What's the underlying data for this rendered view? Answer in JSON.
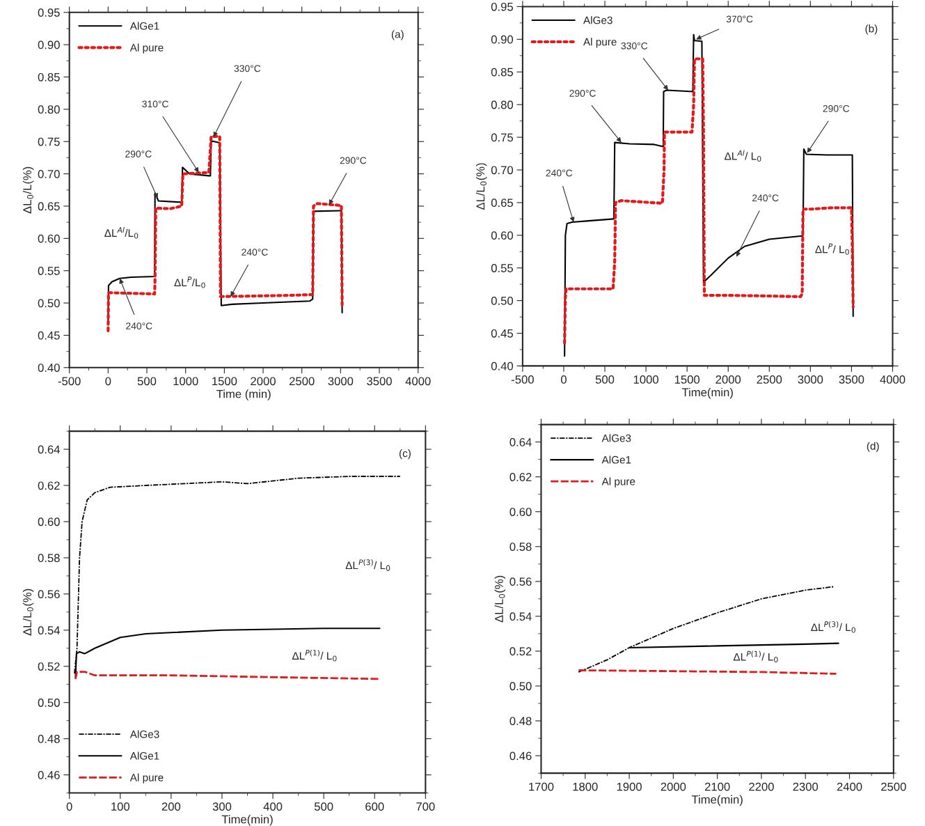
{
  "chart_data": [
    {
      "type": "line",
      "xlabel": "Time (min)",
      "ylabel": "ΔL$_{0}$/L(%)",
      "xlim": [
        -500,
        4000
      ],
      "xticks": [
        -500,
        0,
        500,
        1000,
        1500,
        2000,
        2500,
        3000,
        3500,
        4000
      ],
      "ylim": [
        0.4,
        0.95
      ],
      "yticks": [
        {
          "value": 0.4,
          "label": "0.40"
        },
        {
          "value": 0.45,
          "label": "0.45"
        },
        {
          "value": 0.5,
          "label": "0.50"
        },
        {
          "value": 0.55,
          "label": "0.55"
        },
        {
          "value": 0.6,
          "label": "0.60"
        },
        {
          "value": 0.65,
          "label": "0.65"
        },
        {
          "value": 0.7,
          "label": "0.70"
        },
        {
          "value": 0.75,
          "label": "0.75"
        },
        {
          "value": 0.8,
          "label": "0.80"
        },
        {
          "value": 0.85,
          "label": "0.85"
        },
        {
          "value": 0.9,
          "label": "0.90"
        },
        {
          "value": 0.95,
          "label": "0.95"
        }
      ],
      "legend": "top left",
      "grid": false,
      "series": [
        {
          "name": "AlGe1",
          "color": "#000000",
          "line_style": "solid",
          "x": [
            0,
            5,
            50,
            150,
            300,
            600,
            605,
            650,
            950,
            960,
            1050,
            1300,
            1320,
            1330,
            1440,
            1460,
            1600,
            2000,
            2600,
            2640,
            2650,
            3000,
            3010,
            3020
          ],
          "values": [
            0.47,
            0.527,
            0.533,
            0.538,
            0.54,
            0.541,
            0.67,
            0.658,
            0.656,
            0.71,
            0.7,
            0.697,
            0.697,
            0.751,
            0.748,
            0.496,
            0.498,
            0.5,
            0.503,
            0.506,
            0.642,
            0.643,
            0.643,
            0.485
          ]
        },
        {
          "name": "Al pure",
          "color": "#e3191c",
          "line_style": "dotted",
          "x": [
            0,
            5,
            300,
            600,
            605,
            615,
            800,
            950,
            965,
            1300,
            1330,
            1440,
            1450,
            2000,
            2400,
            2640,
            2650,
            2700,
            3010,
            3020
          ],
          "values": [
            0.457,
            0.516,
            0.515,
            0.514,
            0.535,
            0.647,
            0.646,
            0.65,
            0.7,
            0.702,
            0.758,
            0.758,
            0.51,
            0.511,
            0.512,
            0.513,
            0.65,
            0.654,
            0.651,
            0.497
          ]
        }
      ],
      "annotations": [
        "(a)",
        {
          "text": "290°C",
          "x": 640,
          "y": 0.662
        },
        {
          "text": "310°C",
          "x": 1170,
          "y": 0.702
        },
        {
          "text": "330°C",
          "x": 1360,
          "y": 0.757
        },
        {
          "text": "290°C",
          "x": 2850,
          "y": 0.652
        },
        {
          "text": "240°C",
          "x": 1580,
          "y": 0.51
        },
        {
          "text": "240°C",
          "x": 150,
          "y": 0.538
        },
        "ΔL$^{Al}$/L$_{0}$",
        "ΔL$^{P}$/L$_{0}$"
      ]
    },
    {
      "type": "line",
      "xlabel": "Time(min)",
      "ylabel": "ΔL/L$_{0}$(%)",
      "xlim": [
        -500,
        4000
      ],
      "xticks": [
        -500,
        0,
        500,
        1000,
        1500,
        2000,
        2500,
        3000,
        3500,
        4000
      ],
      "ylim": [
        0.4,
        0.95
      ],
      "yticks": [
        {
          "value": 0.4,
          "label": "0.40"
        },
        {
          "value": 0.45,
          "label": "0.45"
        },
        {
          "value": 0.5,
          "label": "0.50"
        },
        {
          "value": 0.55,
          "label": "0.55"
        },
        {
          "value": 0.6,
          "label": "0.60"
        },
        {
          "value": 0.65,
          "label": "0.65"
        },
        {
          "value": 0.7,
          "label": "0.70"
        },
        {
          "value": 0.75,
          "label": "0.75"
        },
        {
          "value": 0.8,
          "label": "0.80"
        },
        {
          "value": 0.85,
          "label": "0.85"
        },
        {
          "value": 0.9,
          "label": "0.90"
        },
        {
          "value": 0.95,
          "label": "0.95"
        }
      ],
      "legend": "top left",
      "grid": false,
      "series": [
        {
          "name": "AlGe3",
          "color": "#000000",
          "line_style": "solid",
          "x": [
            10,
            20,
            40,
            100,
            300,
            600,
            610,
            620,
            800,
            1100,
            1200,
            1210,
            1215,
            1250,
            1570,
            1580,
            1590,
            1680,
            1700,
            1800,
            2000,
            2200,
            2500,
            2900,
            2910,
            2920,
            2950,
            3200,
            3510,
            3520
          ],
          "values": [
            0.415,
            0.6,
            0.618,
            0.62,
            0.622,
            0.625,
            0.625,
            0.742,
            0.74,
            0.739,
            0.736,
            0.736,
            0.82,
            0.822,
            0.82,
            0.907,
            0.898,
            0.897,
            0.528,
            0.54,
            0.565,
            0.583,
            0.594,
            0.599,
            0.6,
            0.732,
            0.724,
            0.723,
            0.723,
            0.476
          ]
        },
        {
          "name": "Al pure",
          "color": "#e3191c",
          "line_style": "dotted",
          "x": [
            10,
            20,
            30,
            600,
            620,
            630,
            700,
            1200,
            1220,
            1225,
            1560,
            1580,
            1590,
            1690,
            1700,
            1710,
            2000,
            2500,
            2880,
            2900,
            2910,
            3000,
            3250,
            3500,
            3510,
            3520
          ],
          "values": [
            0.435,
            0.505,
            0.518,
            0.518,
            0.56,
            0.65,
            0.653,
            0.649,
            0.7,
            0.758,
            0.758,
            0.8,
            0.87,
            0.87,
            0.76,
            0.508,
            0.508,
            0.507,
            0.506,
            0.51,
            0.64,
            0.64,
            0.642,
            0.642,
            0.58,
            0.49
          ]
        }
      ],
      "annotations": [
        "(b)",
        {
          "text": "240°C",
          "x": 120,
          "y": 0.62
        },
        {
          "text": "290°C",
          "x": 700,
          "y": 0.742
        },
        {
          "text": "330°C",
          "x": 1270,
          "y": 0.822
        },
        {
          "text": "370°C",
          "x": 1610,
          "y": 0.9
        },
        {
          "text": "290°C",
          "x": 2960,
          "y": 0.726
        },
        {
          "text": "240°C",
          "x": 2100,
          "y": 0.567
        },
        "ΔL$^{Al}$/ L$_{0}$",
        "ΔL$^{P}$/ L$_{0}$"
      ]
    },
    {
      "type": "line",
      "xlabel": "Time(min)",
      "ylabel": "ΔL/L$_{0}$(%)",
      "xlim": [
        0,
        700
      ],
      "xticks": [
        0,
        100,
        200,
        300,
        400,
        500,
        600,
        700
      ],
      "ylim": [
        0.45,
        0.65
      ],
      "yticks": [
        {
          "value": 0.46,
          "label": "0.46"
        },
        {
          "value": 0.48,
          "label": "0.48"
        },
        {
          "value": 0.5,
          "label": "0.50"
        },
        {
          "value": 0.52,
          "label": "0.52"
        },
        {
          "value": 0.54,
          "label": "0.54"
        },
        {
          "value": 0.56,
          "label": "0.56"
        },
        {
          "value": 0.58,
          "label": "0.58"
        },
        {
          "value": 0.6,
          "label": "0.60"
        },
        {
          "value": 0.62,
          "label": "0.62"
        },
        {
          "value": 0.64,
          "label": "0.64"
        }
      ],
      "legend": "bottom left",
      "grid": false,
      "series": [
        {
          "name": "AlGe3",
          "color": "#000000",
          "line_style": "dashdot",
          "x": [
            10,
            15,
            20,
            25,
            35,
            50,
            80,
            150,
            300,
            350,
            450,
            550,
            650
          ],
          "values": [
            0.516,
            0.53,
            0.58,
            0.6,
            0.612,
            0.616,
            0.619,
            0.62,
            0.622,
            0.621,
            0.624,
            0.625,
            0.625
          ]
        },
        {
          "name": "AlGe1",
          "color": "#000000",
          "line_style": "solid",
          "x": [
            12,
            14,
            20,
            30,
            50,
            100,
            150,
            300,
            500,
            610
          ],
          "values": [
            0.514,
            0.527,
            0.528,
            0.527,
            0.53,
            0.536,
            0.538,
            0.54,
            0.541,
            0.541
          ]
        },
        {
          "name": "Al pure",
          "color": "#e3191c",
          "line_style": "dashed",
          "x": [
            12,
            15,
            30,
            50,
            200,
            400,
            610
          ],
          "values": [
            0.513,
            0.517,
            0.517,
            0.515,
            0.515,
            0.514,
            0.513
          ]
        }
      ],
      "annotations": [
        "(c)",
        "ΔL$^{P(3)}$/ L$_{0}$",
        "ΔL$^{P(1)}$/ L$_{0}$"
      ]
    },
    {
      "type": "line",
      "xlabel": "Time(min)",
      "ylabel": "ΔL/L$_{0}$(%)",
      "xlim": [
        1700,
        2500
      ],
      "xticks": [
        1700,
        1800,
        1900,
        2000,
        2100,
        2200,
        2300,
        2400,
        2500
      ],
      "ylim": [
        0.45,
        0.65
      ],
      "yticks": [
        {
          "value": 0.46,
          "label": "0.46"
        },
        {
          "value": 0.48,
          "label": "0.48"
        },
        {
          "value": 0.5,
          "label": "0.50"
        },
        {
          "value": 0.52,
          "label": "0.52"
        },
        {
          "value": 0.54,
          "label": "0.54"
        },
        {
          "value": 0.56,
          "label": "0.56"
        },
        {
          "value": 0.58,
          "label": "0.58"
        },
        {
          "value": 0.6,
          "label": "0.60"
        },
        {
          "value": 0.62,
          "label": "0.62"
        },
        {
          "value": 0.64,
          "label": "0.64"
        }
      ],
      "legend": "top left",
      "grid": false,
      "series": [
        {
          "name": "AlGe3",
          "color": "#000000",
          "line_style": "dashdot",
          "x": [
            1785,
            1850,
            1900,
            2000,
            2100,
            2200,
            2300,
            2365
          ],
          "values": [
            0.508,
            0.515,
            0.522,
            0.533,
            0.542,
            0.55,
            0.555,
            0.557
          ]
        },
        {
          "name": "AlGe1",
          "color": "#000000",
          "line_style": "solid",
          "x": [
            1900,
            2100,
            2300,
            2375
          ],
          "values": [
            0.522,
            0.523,
            0.524,
            0.5245
          ]
        },
        {
          "name": "Al pure",
          "color": "#e3191c",
          "line_style": "dashed",
          "x": [
            1785,
            2000,
            2200,
            2370
          ],
          "values": [
            0.509,
            0.5085,
            0.508,
            0.507
          ]
        }
      ],
      "annotations": [
        "(d)",
        "ΔL$^{P(3)}$/ L$_{0}$",
        "ΔL$^{P(1)}$/ L$_{0}$"
      ]
    }
  ]
}
